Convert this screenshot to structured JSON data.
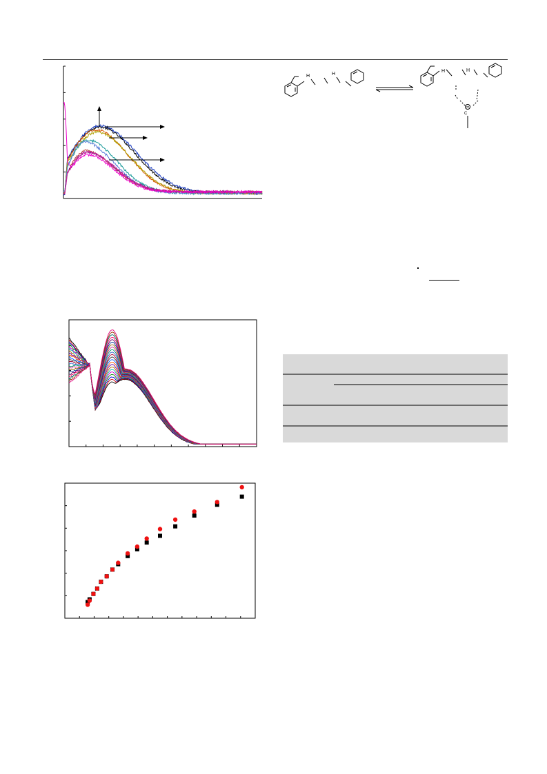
{
  "header": {},
  "figures": {
    "fig_a": {},
    "fig_b": {},
    "fig_c": {},
    "scheme": {}
  },
  "table": {},
  "chart_data": [
    {
      "type": "line",
      "title": "",
      "xlabel": "",
      "ylabel": "",
      "xlim": [
        0,
        1
      ],
      "ylim": [
        0,
        1
      ],
      "grid": false,
      "series": [
        {
          "color": "#000000",
          "peak_x": 0.18,
          "peak_y": 0.54,
          "rise": 0.08,
          "decay": 0.24,
          "end": 0.04,
          "start": 0.02
        },
        {
          "color": "#1f3fbf",
          "peak_x": 0.18,
          "peak_y": 0.55,
          "rise": 0.08,
          "decay": 0.25,
          "end": 0.04,
          "start": 0.02
        },
        {
          "color": "#d45500",
          "peak_x": 0.16,
          "peak_y": 0.52,
          "rise": 0.07,
          "decay": 0.22,
          "end": 0.04,
          "start": 0.03
        },
        {
          "color": "#b0a000",
          "peak_x": 0.17,
          "peak_y": 0.5,
          "rise": 0.07,
          "decay": 0.22,
          "end": 0.04,
          "start": 0.03
        },
        {
          "color": "#1a9a9a",
          "peak_x": 0.12,
          "peak_y": 0.44,
          "rise": 0.05,
          "decay": 0.2,
          "end": 0.04,
          "start": 0.05
        },
        {
          "color": "#5a7dd8",
          "peak_x": 0.1,
          "peak_y": 0.43,
          "rise": 0.05,
          "decay": 0.2,
          "end": 0.04,
          "start": 0.05
        },
        {
          "color": "#b83a3a",
          "peak_x": 0.11,
          "peak_y": 0.36,
          "rise": 0.04,
          "decay": 0.19,
          "end": 0.05,
          "start": 0.03
        },
        {
          "color": "#7a1d8a",
          "peak_x": 0.12,
          "peak_y": 0.35,
          "rise": 0.04,
          "decay": 0.19,
          "end": 0.05,
          "start": 0.03
        },
        {
          "color": "#cc2299",
          "peak_x": 0.12,
          "peak_y": 0.35,
          "rise": 0.04,
          "decay": 0.19,
          "end": 0.05,
          "start": 0.03
        },
        {
          "color": "#ee00cc",
          "peak_x": 0.12,
          "peak_y": 0.33,
          "rise": 0.04,
          "decay": 0.18,
          "end": 0.05,
          "start": 0.72
        }
      ]
    },
    {
      "type": "line",
      "title": "",
      "xlabel": "",
      "ylabel": "",
      "xlim": [
        0,
        1
      ],
      "ylim": [
        0,
        1
      ],
      "grid": false,
      "isosbestic_x": 0.11,
      "series_count": 22,
      "colors": [
        "#000000",
        "#cc0000",
        "#0000cc",
        "#008800",
        "#cc00cc",
        "#00aaaa",
        "#aa6600",
        "#6600aa",
        "#ff5500",
        "#0055ff",
        "#333333",
        "#aa0033",
        "#3366cc",
        "#009966",
        "#cc3399",
        "#996600",
        "#003399",
        "#660066",
        "#ff0066",
        "#006666",
        "#993300",
        "#e0007a"
      ]
    },
    {
      "type": "scatter",
      "title": "",
      "xlabel": "",
      "ylabel": "",
      "xlim": [
        0,
        1
      ],
      "ylim": [
        0,
        1
      ],
      "grid": false,
      "series": [
        {
          "marker": "square",
          "color": "#000000",
          "points": [
            [
              0.12,
              0.12
            ],
            [
              0.13,
              0.14
            ],
            [
              0.15,
              0.18
            ],
            [
              0.17,
              0.22
            ],
            [
              0.19,
              0.27
            ],
            [
              0.22,
              0.31
            ],
            [
              0.25,
              0.36
            ],
            [
              0.28,
              0.4
            ],
            [
              0.33,
              0.46
            ],
            [
              0.38,
              0.51
            ],
            [
              0.43,
              0.56
            ],
            [
              0.5,
              0.61
            ],
            [
              0.58,
              0.68
            ],
            [
              0.68,
              0.76
            ],
            [
              0.8,
              0.84
            ],
            [
              0.93,
              0.9
            ]
          ]
        },
        {
          "marker": "circle",
          "color": "#ee1111",
          "points": [
            [
              0.12,
              0.1
            ],
            [
              0.13,
              0.13
            ],
            [
              0.15,
              0.18
            ],
            [
              0.17,
              0.22
            ],
            [
              0.19,
              0.27
            ],
            [
              0.22,
              0.31
            ],
            [
              0.25,
              0.36
            ],
            [
              0.28,
              0.41
            ],
            [
              0.33,
              0.48
            ],
            [
              0.38,
              0.53
            ],
            [
              0.43,
              0.59
            ],
            [
              0.5,
              0.66
            ],
            [
              0.58,
              0.73
            ],
            [
              0.68,
              0.79
            ],
            [
              0.8,
              0.86
            ],
            [
              0.93,
              0.97
            ]
          ]
        }
      ]
    }
  ]
}
